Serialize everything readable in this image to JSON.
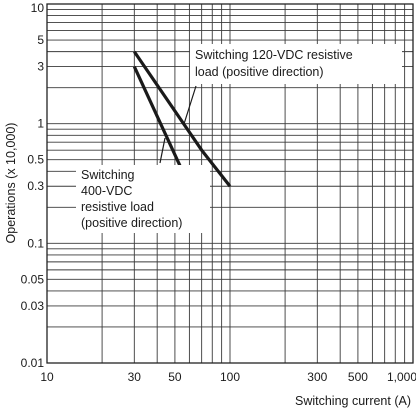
{
  "chart_data": {
    "type": "line",
    "xlabel": "Switching current (A)",
    "ylabel": "Operations (x 10,000)",
    "x_scale": "log",
    "y_scale": "log",
    "xlim": [
      10,
      1000
    ],
    "ylim": [
      0.01,
      10
    ],
    "grid": true,
    "x_ticks": [
      {
        "value": 10,
        "label": "10"
      },
      {
        "value": 30,
        "label": "30"
      },
      {
        "value": 50,
        "label": "50"
      },
      {
        "value": 100,
        "label": "100"
      },
      {
        "value": 300,
        "label": "300"
      },
      {
        "value": 500,
        "label": "500"
      },
      {
        "value": 1000,
        "label": "1,000"
      }
    ],
    "y_ticks": [
      {
        "value": 10,
        "label": "10"
      },
      {
        "value": 5,
        "label": "5"
      },
      {
        "value": 3,
        "label": "3"
      },
      {
        "value": 1,
        "label": "1"
      },
      {
        "value": 0.5,
        "label": "0.5"
      },
      {
        "value": 0.3,
        "label": "0.3"
      },
      {
        "value": 0.1,
        "label": "0.1"
      },
      {
        "value": 0.05,
        "label": "0.05"
      },
      {
        "value": 0.03,
        "label": "0.03"
      },
      {
        "value": 0.01,
        "label": "0.01"
      }
    ],
    "series": [
      {
        "name": "Switching 120-VDC resistive load (positive direction)",
        "x": [
          30,
          70,
          100
        ],
        "y": [
          4,
          0.6,
          0.3
        ]
      },
      {
        "name": "Switching 400-VDC resistive load (positive direction)",
        "x": [
          30,
          60
        ],
        "y": [
          3,
          0.3
        ]
      }
    ],
    "annotations": [
      {
        "lines": [
          "Switching 120-VDC resistive",
          "load (positive direction)"
        ]
      },
      {
        "lines": [
          "Switching",
          "400-VDC",
          "resistive load",
          "(positive direction)"
        ]
      }
    ]
  }
}
